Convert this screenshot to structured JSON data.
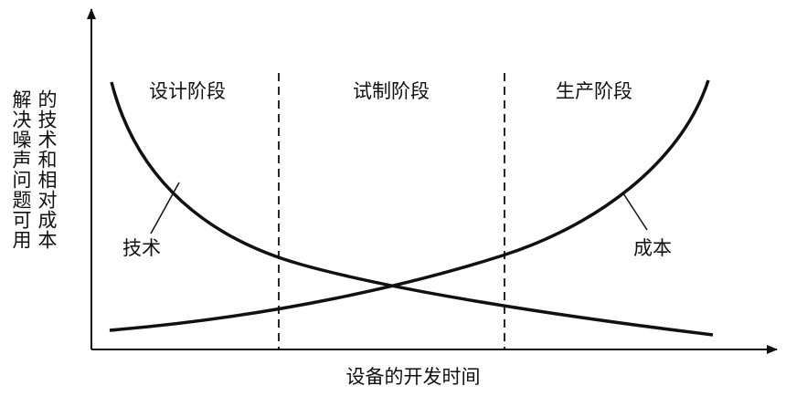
{
  "y_axis_label": [
    "解决噪声问题可用",
    "的技术和相对成本"
  ],
  "x_axis_label": "设备的开发时间",
  "phases": [
    "设计阶段",
    "试制阶段",
    "生产阶段"
  ],
  "curves": [
    "技术",
    "成本"
  ]
}
